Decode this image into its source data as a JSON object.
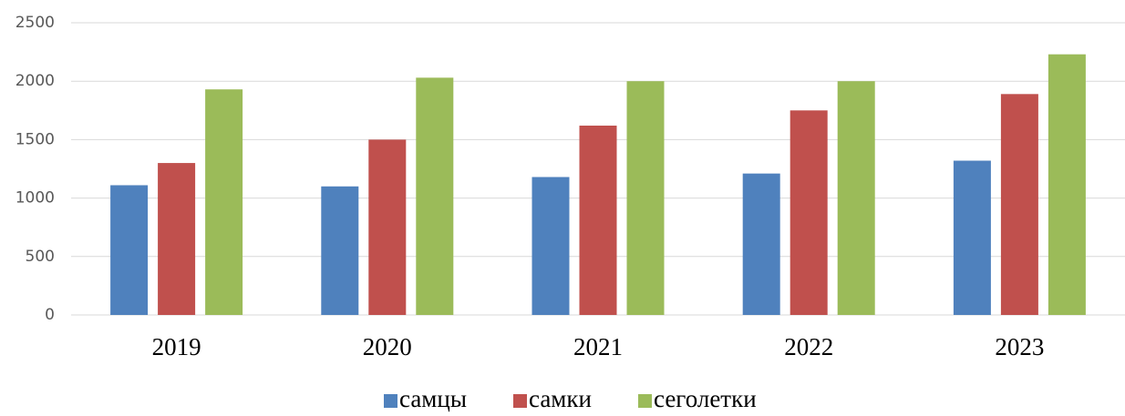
{
  "chart_data": {
    "type": "bar",
    "categories": [
      "2019",
      "2020",
      "2021",
      "2022",
      "2023"
    ],
    "series": [
      {
        "name": "самцы",
        "color": "#4f81bd",
        "values": [
          1110,
          1100,
          1180,
          1210,
          1320
        ]
      },
      {
        "name": "самки",
        "color": "#c0504d",
        "values": [
          1300,
          1500,
          1620,
          1750,
          1890
        ]
      },
      {
        "name": "сеголетки",
        "color": "#9bbb59",
        "values": [
          1930,
          2030,
          2000,
          2000,
          2230
        ]
      }
    ],
    "ylim": [
      0,
      2500
    ],
    "yticks": [
      0,
      500,
      1000,
      1500,
      2000,
      2500
    ],
    "grid": true,
    "legend": "bottom"
  }
}
